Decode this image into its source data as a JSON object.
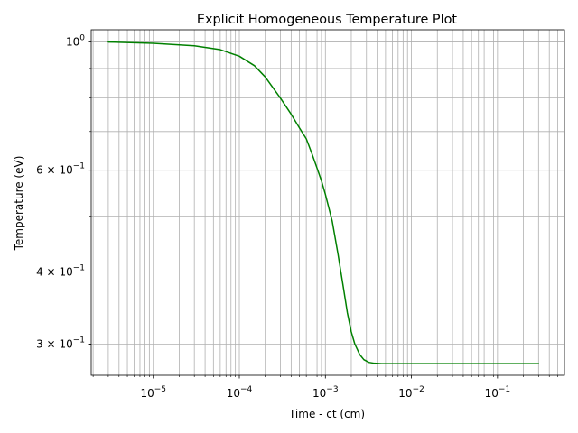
{
  "chart_data": {
    "type": "line",
    "title": "Explicit Homogeneous Temperature Plot",
    "xlabel": "Time - ct (cm)",
    "ylabel": "Temperature (eV)",
    "xscale": "log",
    "yscale": "log",
    "xlim": [
      1.9e-06,
      0.6
    ],
    "ylim": [
      0.265,
      1.05
    ],
    "grid": "both (major and minor)",
    "x_ticks": [
      {
        "value": 1e-05,
        "base": "10",
        "exp": "−5"
      },
      {
        "value": 0.0001,
        "base": "10",
        "exp": "−4"
      },
      {
        "value": 0.001,
        "base": "10",
        "exp": "−3"
      },
      {
        "value": 0.01,
        "base": "10",
        "exp": "−2"
      },
      {
        "value": 0.1,
        "base": "10",
        "exp": "−1"
      }
    ],
    "y_ticks": [
      {
        "value": 1.0,
        "mant": "",
        "base": "10",
        "exp": "0"
      },
      {
        "value": 0.6,
        "mant": "6 × ",
        "base": "10",
        "exp": "−1"
      },
      {
        "value": 0.4,
        "mant": "4 × ",
        "base": "10",
        "exp": "−1"
      },
      {
        "value": 0.3,
        "mant": "3 × ",
        "base": "10",
        "exp": "−1"
      }
    ],
    "series": [
      {
        "color": "#008000",
        "x": [
          3e-06,
          1e-05,
          3e-05,
          6e-05,
          0.0001,
          0.00015,
          0.0002,
          0.0003,
          0.0004,
          0.0005,
          0.0006,
          0.0007,
          0.0008,
          0.0009,
          0.001,
          0.0012,
          0.0014,
          0.0016,
          0.0018,
          0.002,
          0.0022,
          0.0025,
          0.0028,
          0.0032,
          0.0037,
          0.0045,
          0.006,
          0.01,
          0.03,
          0.1,
          0.3
        ],
        "y": [
          1.0,
          0.995,
          0.985,
          0.97,
          0.945,
          0.91,
          0.87,
          0.8,
          0.75,
          0.71,
          0.68,
          0.64,
          0.605,
          0.575,
          0.545,
          0.49,
          0.43,
          0.38,
          0.34,
          0.315,
          0.3,
          0.288,
          0.282,
          0.279,
          0.278,
          0.2775,
          0.2775,
          0.2775,
          0.2775,
          0.2775,
          0.2775
        ]
      }
    ]
  }
}
